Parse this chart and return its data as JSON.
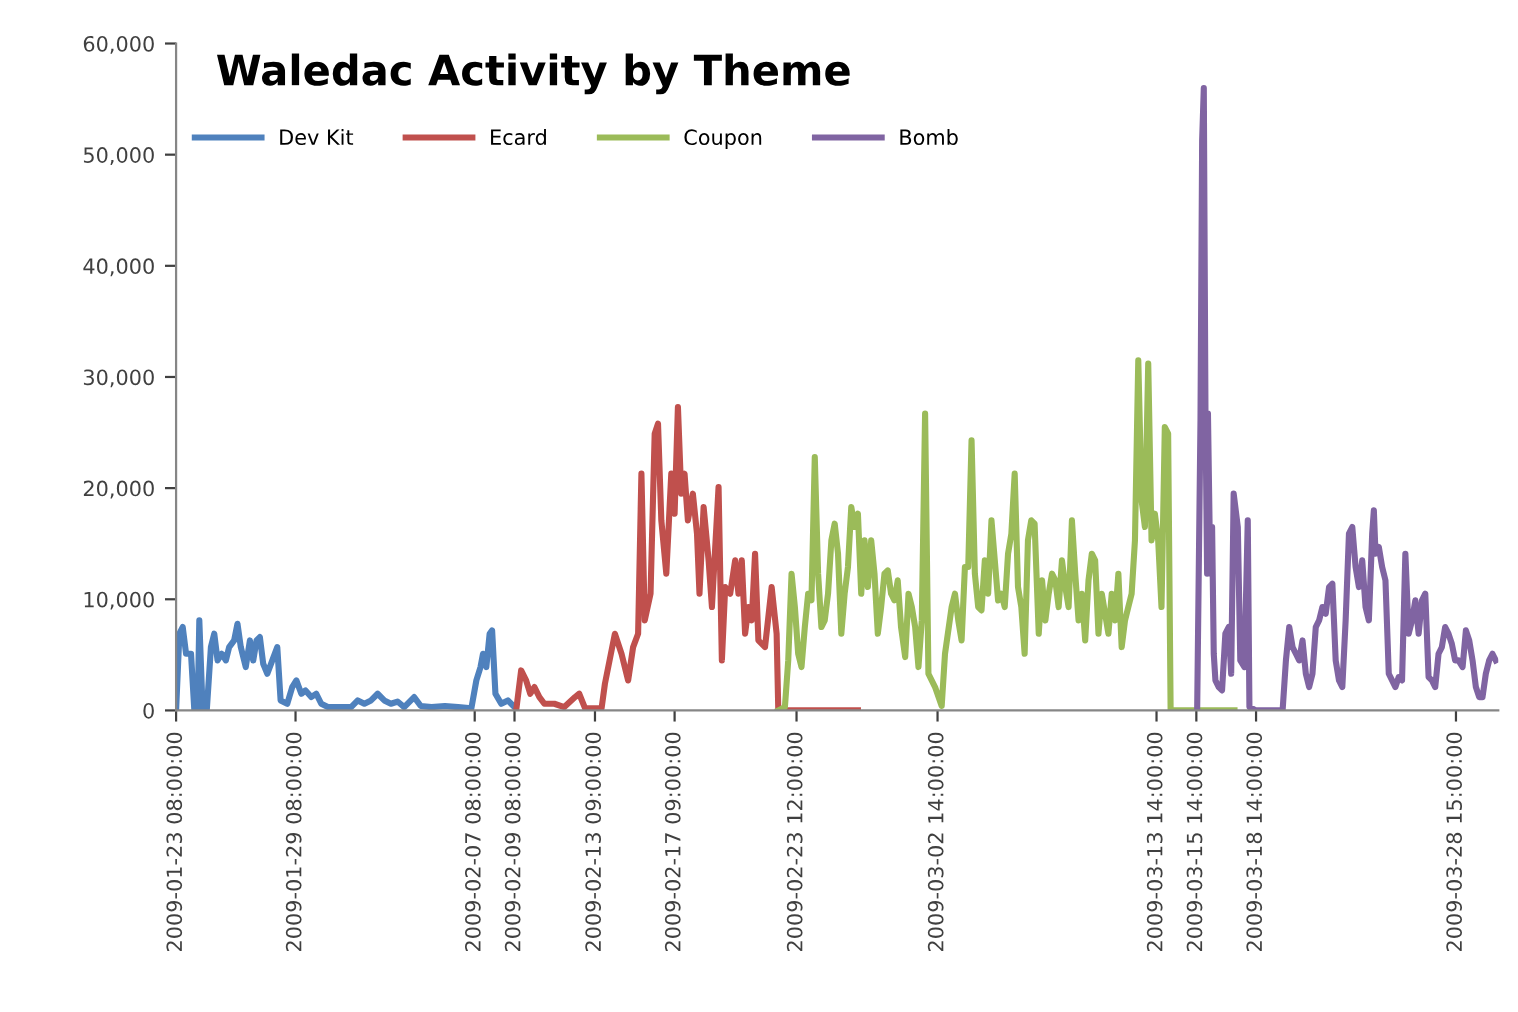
{
  "chart_data": {
    "type": "line",
    "title": "Waledac Activity by Theme",
    "legend": "top left",
    "grid": false,
    "marker": "none",
    "line_style": "solid",
    "ylim": [
      0,
      60000
    ],
    "yticks": [
      {
        "value": 0,
        "label": "0"
      },
      {
        "value": 10000,
        "label": "10,000"
      },
      {
        "value": 20000,
        "label": "20,000"
      },
      {
        "value": 30000,
        "label": "30,000"
      },
      {
        "value": 40000,
        "label": "40,000"
      },
      {
        "value": 50000,
        "label": "50,000"
      },
      {
        "value": 60000,
        "label": "60,000"
      }
    ],
    "xlim": [
      "2009-01-23T08:00",
      "2009-03-30T18:00"
    ],
    "xticks": [
      {
        "value": "2009-01-23T08:00",
        "label": "2009-01-23 08:00:00"
      },
      {
        "value": "2009-01-29T08:00",
        "label": "2009-01-29 08:00:00"
      },
      {
        "value": "2009-02-07T08:00",
        "label": "2009-02-07 08:00:00"
      },
      {
        "value": "2009-02-09T08:00",
        "label": "2009-02-09 08:00:00"
      },
      {
        "value": "2009-02-13T09:00",
        "label": "2009-02-13 09:00:00"
      },
      {
        "value": "2009-02-17T09:00",
        "label": "2009-02-17 09:00:00"
      },
      {
        "value": "2009-02-23T12:00",
        "label": "2009-02-23 12:00:00"
      },
      {
        "value": "2009-03-02T14:00",
        "label": "2009-03-02 14:00:00"
      },
      {
        "value": "2009-03-13T14:00",
        "label": "2009-03-13 14:00:00"
      },
      {
        "value": "2009-03-15T14:00",
        "label": "2009-03-15 14:00:00"
      },
      {
        "value": "2009-03-18T14:00",
        "label": "2009-03-18 14:00:00"
      },
      {
        "value": "2009-03-28T15:00",
        "label": "2009-03-28 15:00:00"
      }
    ],
    "series": [
      {
        "name": "Dev Kit",
        "color": "#4f81bd",
        "x": [
          "2009-01-23T08:00",
          "2009-01-23T12:00",
          "2009-01-23T16:00",
          "2009-01-23T20:00",
          "2009-01-24T02:00",
          "2009-01-24T06:00",
          "2009-01-24T10:00",
          "2009-01-24T12:00",
          "2009-01-24T16:00",
          "2009-01-24T21:00",
          "2009-01-25T02:00",
          "2009-01-25T06:00",
          "2009-01-25T10:00",
          "2009-01-25T15:00",
          "2009-01-25T20:00",
          "2009-01-26T00:00",
          "2009-01-26T06:00",
          "2009-01-26T10:00",
          "2009-01-26T14:00",
          "2009-01-26T20:00",
          "2009-01-27T01:00",
          "2009-01-27T05:00",
          "2009-01-27T09:00",
          "2009-01-27T13:00",
          "2009-01-27T17:00",
          "2009-01-27T22:00",
          "2009-01-28T04:00",
          "2009-01-28T10:00",
          "2009-01-28T14:00",
          "2009-01-28T22:00",
          "2009-01-29T04:00",
          "2009-01-29T09:00",
          "2009-01-29T15:00",
          "2009-01-29T20:00",
          "2009-01-30T03:00",
          "2009-01-30T09:00",
          "2009-01-30T15:00",
          "2009-01-30T23:00",
          "2009-01-31T11:00",
          "2009-02-01T03:00",
          "2009-02-01T11:00",
          "2009-02-01T19:00",
          "2009-02-02T03:00",
          "2009-02-02T11:00",
          "2009-02-02T19:00",
          "2009-02-03T03:00",
          "2009-02-03T11:00",
          "2009-02-03T19:00",
          "2009-02-04T07:00",
          "2009-02-04T15:00",
          "2009-02-05T04:00",
          "2009-02-05T20:00",
          "2009-02-06T12:00",
          "2009-02-07T04:00",
          "2009-02-07T10:00",
          "2009-02-07T15:00",
          "2009-02-07T18:00",
          "2009-02-07T22:00",
          "2009-02-08T02:00",
          "2009-02-08T05:00",
          "2009-02-08T09:00",
          "2009-02-08T16:00",
          "2009-02-09T00:00",
          "2009-02-09T08:00"
        ],
        "values": [
          0,
          6900,
          7500,
          5100,
          5100,
          0,
          0,
          8100,
          0,
          0,
          5700,
          6900,
          4500,
          5100,
          4500,
          5700,
          6300,
          7800,
          5700,
          3900,
          6300,
          4500,
          6300,
          6600,
          4200,
          3300,
          4500,
          5700,
          900,
          600,
          2100,
          2700,
          1500,
          1800,
          1200,
          1500,
          600,
          300,
          300,
          300,
          900,
          600,
          900,
          1500,
          900,
          600,
          800,
          300,
          1200,
          400,
          300,
          400,
          300,
          200,
          2700,
          3900,
          5100,
          3900,
          6900,
          7200,
          1500,
          600,
          900,
          300
        ]
      },
      {
        "name": "Ecard",
        "color": "#c0504d",
        "x": [
          "2009-02-09T10:00",
          "2009-02-09T16:00",
          "2009-02-09T22:00",
          "2009-02-10T03:00",
          "2009-02-10T08:00",
          "2009-02-10T14:00",
          "2009-02-10T20:00",
          "2009-02-11T08:00",
          "2009-02-11T20:00",
          "2009-02-12T09:00",
          "2009-02-12T14:00",
          "2009-02-12T21:00",
          "2009-02-13T17:00",
          "2009-02-13T21:00",
          "2009-02-14T09:00",
          "2009-02-14T17:00",
          "2009-02-15T01:00",
          "2009-02-15T07:00",
          "2009-02-15T13:00",
          "2009-02-15T17:00",
          "2009-02-15T21:00",
          "2009-02-16T04:00",
          "2009-02-16T09:00",
          "2009-02-16T13:00",
          "2009-02-16T17:00",
          "2009-02-16T23:00",
          "2009-02-17T05:00",
          "2009-02-17T09:00",
          "2009-02-17T13:00",
          "2009-02-17T17:00",
          "2009-02-17T21:00",
          "2009-02-18T01:00",
          "2009-02-18T07:00",
          "2009-02-18T12:00",
          "2009-02-18T15:00",
          "2009-02-18T20:00",
          "2009-02-19T02:00",
          "2009-02-19T06:00",
          "2009-02-19T10:00",
          "2009-02-19T14:00",
          "2009-02-19T18:00",
          "2009-02-19T22:00",
          "2009-02-20T04:00",
          "2009-02-20T10:00",
          "2009-02-20T14:00",
          "2009-02-20T18:00",
          "2009-02-20T22:00",
          "2009-02-21T02:00",
          "2009-02-21T06:00",
          "2009-02-21T10:00",
          "2009-02-21T14:00",
          "2009-02-21T22:00",
          "2009-02-22T06:00",
          "2009-02-22T12:00",
          "2009-02-22T14:00",
          "2009-02-26T14:00"
        ],
        "values": [
          0,
          3600,
          2700,
          1500,
          2100,
          1200,
          600,
          600,
          300,
          1200,
          1500,
          200,
          200,
          2400,
          6900,
          5100,
          2700,
          5700,
          6900,
          21300,
          8100,
          10500,
          24900,
          25800,
          17100,
          12300,
          21300,
          17700,
          27300,
          19500,
          21300,
          17100,
          19500,
          15900,
          10500,
          18300,
          13500,
          9300,
          14700,
          20100,
          4500,
          11100,
          10500,
          13500,
          10500,
          13500,
          6900,
          9300,
          8100,
          14100,
          6300,
          5700,
          11100,
          6900,
          0,
          0
        ]
      },
      {
        "name": "Coupon",
        "color": "#9bbb59",
        "x": [
          "2009-02-22T14:00",
          "2009-02-22T22:00",
          "2009-02-23T02:00",
          "2009-02-23T06:00",
          "2009-02-23T10:00",
          "2009-02-23T14:00",
          "2009-02-23T18:00",
          "2009-02-23T22:00",
          "2009-02-24T02:00",
          "2009-02-24T06:00",
          "2009-02-24T10:00",
          "2009-02-24T14:00",
          "2009-02-24T18:00",
          "2009-02-24T22:00",
          "2009-02-25T02:00",
          "2009-02-25T06:00",
          "2009-02-25T10:00",
          "2009-02-25T14:00",
          "2009-02-25T18:00",
          "2009-02-25T22:00",
          "2009-02-26T02:00",
          "2009-02-26T06:00",
          "2009-02-26T10:00",
          "2009-02-26T14:00",
          "2009-02-26T18:00",
          "2009-02-26T22:00",
          "2009-02-27T02:00",
          "2009-02-27T06:00",
          "2009-02-27T10:00",
          "2009-02-27T14:00",
          "2009-02-27T18:00",
          "2009-02-27T22:00",
          "2009-02-28T02:00",
          "2009-02-28T06:00",
          "2009-02-28T10:00",
          "2009-02-28T14:00",
          "2009-02-28T18:00",
          "2009-02-28T23:00",
          "2009-03-01T03:00",
          "2009-03-01T07:00",
          "2009-03-01T11:00",
          "2009-03-01T15:00",
          "2009-03-01T19:00",
          "2009-03-01T23:00",
          "2009-03-02T03:00",
          "2009-03-02T11:00",
          "2009-03-02T19:00",
          "2009-03-02T23:00",
          "2009-03-03T07:00",
          "2009-03-03T11:00",
          "2009-03-03T15:00",
          "2009-03-03T19:00",
          "2009-03-03T23:00",
          "2009-03-04T03:00",
          "2009-03-04T07:00",
          "2009-03-04T11:00",
          "2009-03-04T15:00",
          "2009-03-04T19:00",
          "2009-03-04T23:00",
          "2009-03-05T03:00",
          "2009-03-05T07:00",
          "2009-03-05T11:00",
          "2009-03-05T15:00",
          "2009-03-05T19:00",
          "2009-03-05T23:00",
          "2009-03-06T03:00",
          "2009-03-06T07:00",
          "2009-03-06T11:00",
          "2009-03-06T15:00",
          "2009-03-06T19:00",
          "2009-03-06T23:00",
          "2009-03-07T03:00",
          "2009-03-07T07:00",
          "2009-03-07T11:00",
          "2009-03-07T16:00",
          "2009-03-07T20:00",
          "2009-03-08T00:00",
          "2009-03-08T04:00",
          "2009-03-08T08:00",
          "2009-03-08T12:00",
          "2009-03-08T16:00",
          "2009-03-08T20:00",
          "2009-03-09T00:00",
          "2009-03-09T04:00",
          "2009-03-09T08:00",
          "2009-03-09T12:00",
          "2009-03-09T16:00",
          "2009-03-09T20:00",
          "2009-03-10T00:00",
          "2009-03-10T04:00",
          "2009-03-10T08:00",
          "2009-03-10T12:00",
          "2009-03-10T16:00",
          "2009-03-10T20:00",
          "2009-03-11T00:00",
          "2009-03-11T04:00",
          "2009-03-11T08:00",
          "2009-03-11T12:00",
          "2009-03-11T16:00",
          "2009-03-11T20:00",
          "2009-03-12T00:00",
          "2009-03-12T04:00",
          "2009-03-12T08:00",
          "2009-03-12T12:00",
          "2009-03-12T16:00",
          "2009-03-12T20:00",
          "2009-03-13T00:00",
          "2009-03-13T04:00",
          "2009-03-13T08:00",
          "2009-03-13T12:00",
          "2009-03-13T16:00",
          "2009-03-13T20:00",
          "2009-03-14T00:00",
          "2009-03-14T04:00",
          "2009-03-14T07:00",
          "2009-03-17T12:00"
        ],
        "values": [
          0,
          300,
          4500,
          12300,
          9300,
          5100,
          3900,
          7500,
          10500,
          9900,
          22800,
          12300,
          7500,
          8100,
          10500,
          15300,
          16800,
          14100,
          6900,
          10500,
          12900,
          18300,
          16500,
          17700,
          10500,
          15300,
          11100,
          15300,
          12300,
          6900,
          9300,
          12300,
          12600,
          10500,
          9900,
          11700,
          7500,
          4800,
          10500,
          9300,
          7500,
          3900,
          8100,
          26700,
          3300,
          2100,
          400,
          5100,
          9300,
          10500,
          8100,
          6300,
          12900,
          12900,
          24300,
          12300,
          9300,
          9000,
          13500,
          10500,
          17100,
          13500,
          9900,
          10500,
          9300,
          14100,
          15900,
          21300,
          11100,
          9300,
          5100,
          15300,
          17100,
          16800,
          6900,
          11700,
          8100,
          10500,
          12300,
          11700,
          9300,
          13500,
          11100,
          9300,
          17100,
          12300,
          8100,
          10500,
          6300,
          11700,
          14100,
          13500,
          6900,
          10500,
          8700,
          6900,
          10500,
          8100,
          12300,
          5700,
          8100,
          9300,
          10500,
          15300,
          31500,
          18900,
          16500,
          31200,
          15300,
          17700,
          15300,
          9300,
          25500,
          24900,
          0,
          0
        ]
      },
      {
        "name": "Bomb",
        "color": "#8064a2",
        "x": [
          "2009-03-15T15:00",
          "2009-03-15T19:00",
          "2009-03-15T21:00",
          "2009-03-15T23:00",
          "2009-03-16T01:00",
          "2009-03-16T03:00",
          "2009-03-16T04:00",
          "2009-03-16T06:00",
          "2009-03-16T08:00",
          "2009-03-16T09:00",
          "2009-03-16T11:00",
          "2009-03-16T13:00",
          "2009-03-16T17:00",
          "2009-03-16T21:00",
          "2009-03-17T01:00",
          "2009-03-17T05:00",
          "2009-03-17T08:00",
          "2009-03-17T11:00",
          "2009-03-17T16:00",
          "2009-03-17T19:00",
          "2009-03-18T00:00",
          "2009-03-18T04:00",
          "2009-03-18T06:00",
          "2009-03-18T14:00",
          "2009-03-19T22:00",
          "2009-03-20T02:00",
          "2009-03-20T06:00",
          "2009-03-20T10:00",
          "2009-03-20T14:00",
          "2009-03-20T18:00",
          "2009-03-20T22:00",
          "2009-03-21T02:00",
          "2009-03-21T06:00",
          "2009-03-21T10:00",
          "2009-03-21T14:00",
          "2009-03-21T18:00",
          "2009-03-21T22:00",
          "2009-03-22T02:00",
          "2009-03-22T06:00",
          "2009-03-22T10:00",
          "2009-03-22T14:00",
          "2009-03-22T18:00",
          "2009-03-22T22:00",
          "2009-03-23T02:00",
          "2009-03-23T06:00",
          "2009-03-23T10:00",
          "2009-03-23T14:00",
          "2009-03-23T18:00",
          "2009-03-23T22:00",
          "2009-03-24T02:00",
          "2009-03-24T06:00",
          "2009-03-24T10:00",
          "2009-03-24T12:00",
          "2009-03-24T14:00",
          "2009-03-24T18:00",
          "2009-03-24T22:00",
          "2009-03-25T02:00",
          "2009-03-25T06:00",
          "2009-03-25T10:00",
          "2009-03-25T14:00",
          "2009-03-25T18:00",
          "2009-03-25T22:00",
          "2009-03-26T02:00",
          "2009-03-26T06:00",
          "2009-03-26T10:00",
          "2009-03-26T14:00",
          "2009-03-26T18:00",
          "2009-03-26T22:00",
          "2009-03-27T02:00",
          "2009-03-27T06:00",
          "2009-03-27T10:00",
          "2009-03-27T14:00",
          "2009-03-27T18:00",
          "2009-03-27T22:00",
          "2009-03-28T02:00",
          "2009-03-28T06:00",
          "2009-03-28T10:00",
          "2009-03-28T14:00",
          "2009-03-28T18:00",
          "2009-03-28T23:00",
          "2009-03-29T03:00",
          "2009-03-29T07:00",
          "2009-03-29T11:00",
          "2009-03-29T15:00",
          "2009-03-29T19:00",
          "2009-03-29T23:00",
          "2009-03-30T03:00",
          "2009-03-30T07:00",
          "2009-03-30T11:00",
          "2009-03-30T15:00"
        ],
        "values": [
          0,
          26100,
          51300,
          56000,
          26700,
          12300,
          26700,
          16500,
          12300,
          16500,
          5100,
          2700,
          2100,
          1800,
          6900,
          7500,
          3300,
          19500,
          16500,
          4500,
          3900,
          17100,
          300,
          0,
          0,
          4500,
          7500,
          5700,
          5100,
          4500,
          6300,
          3300,
          2100,
          3300,
          7500,
          8100,
          9300,
          8700,
          11100,
          11400,
          4500,
          2700,
          2100,
          8100,
          15900,
          16500,
          12900,
          11100,
          13500,
          9300,
          8100,
          15900,
          18000,
          14100,
          14700,
          12900,
          11700,
          3300,
          2700,
          2100,
          3000,
          2700,
          14100,
          6900,
          8100,
          9900,
          6900,
          9900,
          10500,
          3000,
          2700,
          2100,
          5100,
          5700,
          7500,
          6900,
          6000,
          4500,
          4500,
          3900,
          7200,
          6300,
          4500,
          2100,
          1200,
          1200,
          3300,
          4500,
          5100,
          4500
        ]
      }
    ]
  }
}
